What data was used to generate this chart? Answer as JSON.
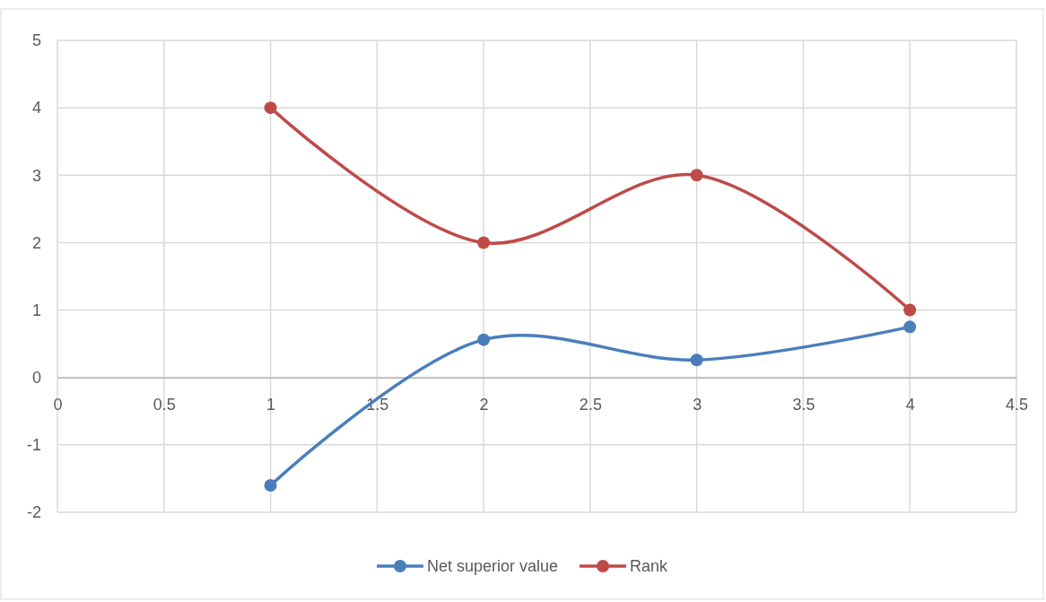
{
  "chart_data": {
    "type": "line",
    "x": [
      1,
      2,
      3,
      4
    ],
    "series": [
      {
        "name": "Net superior value",
        "color": "#4a7ebb",
        "values": [
          -1.6,
          0.56,
          0.26,
          0.75
        ]
      },
      {
        "name": "Rank",
        "color": "#be4b48",
        "values": [
          4,
          2,
          3,
          1
        ]
      }
    ],
    "xlim": [
      0,
      4.5
    ],
    "xticks": [
      0,
      0.5,
      1,
      1.5,
      2,
      2.5,
      3,
      3.5,
      4,
      4.5
    ],
    "ylim": [
      -2,
      5
    ],
    "yticks": [
      -2,
      -1,
      0,
      1,
      2,
      3,
      4,
      5
    ],
    "grid": true,
    "legend": "bottom",
    "marker": "circle",
    "line_style": "solid"
  }
}
